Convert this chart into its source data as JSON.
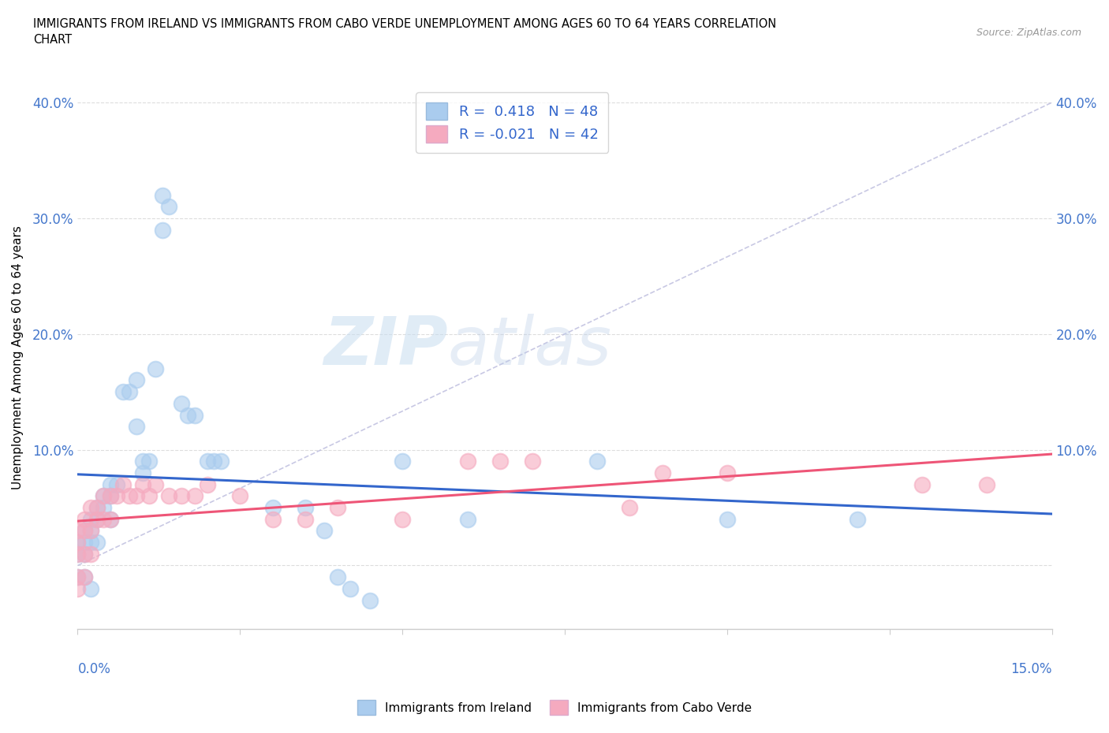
{
  "title": "IMMIGRANTS FROM IRELAND VS IMMIGRANTS FROM CABO VERDE UNEMPLOYMENT AMONG AGES 60 TO 64 YEARS CORRELATION\nCHART",
  "source": "Source: ZipAtlas.com",
  "ylabel": "Unemployment Among Ages 60 to 64 years",
  "xlim": [
    0.0,
    0.15
  ],
  "ylim": [
    -0.055,
    0.415
  ],
  "yticks": [
    0.0,
    0.1,
    0.2,
    0.3,
    0.4
  ],
  "ytick_labels": [
    "",
    "10.0%",
    "20.0%",
    "30.0%",
    "40.0%"
  ],
  "xtick_label_left": "0.0%",
  "xtick_label_right": "15.0%",
  "ireland_color": "#aaccee",
  "cabo_verde_color": "#f5aabf",
  "ireland_line_color": "#3366cc",
  "cabo_verde_line_color": "#ee5577",
  "diagonal_color": "#bbbbdd",
  "R_ireland": 0.418,
  "N_ireland": 48,
  "R_cabo_verde": -0.021,
  "N_cabo_verde": 42,
  "watermark_ZIP": "ZIP",
  "watermark_atlas": "atlas",
  "ireland_x": [
    0.0,
    0.0,
    0.0,
    0.001,
    0.001,
    0.001,
    0.001,
    0.002,
    0.002,
    0.002,
    0.002,
    0.003,
    0.003,
    0.003,
    0.004,
    0.004,
    0.005,
    0.005,
    0.005,
    0.006,
    0.007,
    0.008,
    0.009,
    0.009,
    0.01,
    0.01,
    0.011,
    0.012,
    0.013,
    0.013,
    0.014,
    0.016,
    0.017,
    0.018,
    0.02,
    0.021,
    0.022,
    0.03,
    0.035,
    0.038,
    0.04,
    0.042,
    0.045,
    0.05,
    0.06,
    0.08,
    0.1,
    0.12
  ],
  "ireland_y": [
    0.02,
    0.01,
    -0.01,
    0.03,
    0.02,
    0.01,
    -0.01,
    0.04,
    0.03,
    0.02,
    -0.02,
    0.05,
    0.04,
    0.02,
    0.06,
    0.05,
    0.07,
    0.06,
    0.04,
    0.07,
    0.15,
    0.15,
    0.16,
    0.12,
    0.09,
    0.08,
    0.09,
    0.17,
    0.32,
    0.29,
    0.31,
    0.14,
    0.13,
    0.13,
    0.09,
    0.09,
    0.09,
    0.05,
    0.05,
    0.03,
    -0.01,
    -0.02,
    -0.03,
    0.09,
    0.04,
    0.09,
    0.04,
    0.04
  ],
  "cabo_verde_x": [
    0.0,
    0.0,
    0.0,
    0.0,
    0.0,
    0.001,
    0.001,
    0.001,
    0.001,
    0.002,
    0.002,
    0.002,
    0.003,
    0.003,
    0.004,
    0.004,
    0.005,
    0.005,
    0.006,
    0.007,
    0.008,
    0.009,
    0.01,
    0.011,
    0.012,
    0.014,
    0.016,
    0.018,
    0.02,
    0.025,
    0.03,
    0.035,
    0.04,
    0.05,
    0.06,
    0.065,
    0.07,
    0.085,
    0.09,
    0.1,
    0.13,
    0.14
  ],
  "cabo_verde_y": [
    0.03,
    0.02,
    0.01,
    -0.01,
    -0.02,
    0.04,
    0.03,
    0.01,
    -0.01,
    0.05,
    0.03,
    0.01,
    0.05,
    0.04,
    0.06,
    0.04,
    0.06,
    0.04,
    0.06,
    0.07,
    0.06,
    0.06,
    0.07,
    0.06,
    0.07,
    0.06,
    0.06,
    0.06,
    0.07,
    0.06,
    0.04,
    0.04,
    0.05,
    0.04,
    0.09,
    0.09,
    0.09,
    0.05,
    0.08,
    0.08,
    0.07,
    0.07
  ]
}
